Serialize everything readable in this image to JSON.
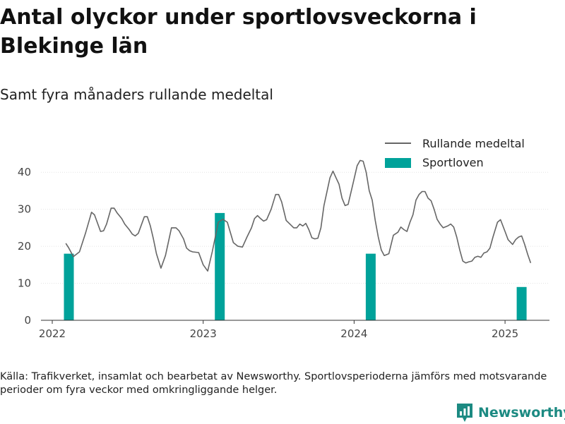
{
  "header": {
    "title": "Antal olyckor under sportlovsveckorna i Blekinge län",
    "subtitle": "Samt fyra månaders rullande medeltal"
  },
  "footer": {
    "source": "Källa: Trafikverket, insamlat och bearbetat av Newsworthy. Sportlovsperioderna jämförs med motsvarande perioder om fyra veckor med omkringliggande helger.",
    "brand": "Newsworthy"
  },
  "colors": {
    "line": "#666666",
    "bar": "#00a29a",
    "brand": "#1c8a82",
    "grid": "#e3e3e3"
  },
  "chart_data": {
    "type": "bar+line",
    "xlim": [
      2021.95,
      2025.3
    ],
    "ylim": [
      0,
      45
    ],
    "y_ticks": [
      0,
      10,
      20,
      30,
      40
    ],
    "x_ticks": [
      2022,
      2023,
      2024,
      2025
    ],
    "x_tick_labels": [
      "2022",
      "2023",
      "2024",
      "2025"
    ],
    "legend_position": "top-right",
    "grid": true,
    "series": [
      {
        "name": "Rullande medeltal",
        "type": "line",
        "color": "#666666",
        "points": [
          [
            2022.09,
            20.8
          ],
          [
            2022.11,
            19.5
          ],
          [
            2022.14,
            17.2
          ],
          [
            2022.18,
            18.5
          ],
          [
            2022.22,
            23.5
          ],
          [
            2022.26,
            29.2
          ],
          [
            2022.28,
            28.5
          ],
          [
            2022.32,
            24
          ],
          [
            2022.34,
            24.2
          ],
          [
            2022.36,
            26
          ],
          [
            2022.39,
            30.3
          ],
          [
            2022.41,
            30.3
          ],
          [
            2022.43,
            29
          ],
          [
            2022.46,
            27.5
          ],
          [
            2022.48,
            26
          ],
          [
            2022.51,
            24.5
          ],
          [
            2022.53,
            23.3
          ],
          [
            2022.55,
            22.8
          ],
          [
            2022.57,
            23.5
          ],
          [
            2022.61,
            28
          ],
          [
            2022.63,
            28
          ],
          [
            2022.65,
            25.5
          ],
          [
            2022.67,
            22
          ],
          [
            2022.69,
            18
          ],
          [
            2022.72,
            14.1
          ],
          [
            2022.75,
            17.5
          ],
          [
            2022.79,
            25
          ],
          [
            2022.82,
            25
          ],
          [
            2022.84,
            24.2
          ],
          [
            2022.87,
            22
          ],
          [
            2022.89,
            19.5
          ],
          [
            2022.91,
            18.8
          ],
          [
            2022.93,
            18.5
          ],
          [
            2022.97,
            18.3
          ],
          [
            2023.0,
            15
          ],
          [
            2023.03,
            13.3
          ],
          [
            2023.06,
            18.5
          ],
          [
            2023.1,
            26.5
          ],
          [
            2023.13,
            27.3
          ],
          [
            2023.16,
            26.5
          ],
          [
            2023.2,
            21
          ],
          [
            2023.23,
            20
          ],
          [
            2023.26,
            19.8
          ],
          [
            2023.29,
            22.5
          ],
          [
            2023.32,
            25
          ],
          [
            2023.34,
            27.5
          ],
          [
            2023.36,
            28.3
          ],
          [
            2023.38,
            27.5
          ],
          [
            2023.4,
            26.8
          ],
          [
            2023.42,
            27.2
          ],
          [
            2023.45,
            30
          ],
          [
            2023.48,
            34
          ],
          [
            2023.5,
            34
          ],
          [
            2023.52,
            32
          ],
          [
            2023.55,
            27
          ],
          [
            2023.58,
            25.8
          ],
          [
            2023.6,
            25
          ],
          [
            2023.62,
            25
          ],
          [
            2023.64,
            26
          ],
          [
            2023.66,
            25.5
          ],
          [
            2023.68,
            26.2
          ],
          [
            2023.7,
            24.5
          ],
          [
            2023.72,
            22.3
          ],
          [
            2023.74,
            22
          ],
          [
            2023.76,
            22.2
          ],
          [
            2023.78,
            25
          ],
          [
            2023.8,
            31
          ],
          [
            2023.84,
            38.5
          ],
          [
            2023.86,
            40.3
          ],
          [
            2023.88,
            38.5
          ],
          [
            2023.9,
            36.8
          ],
          [
            2023.92,
            33
          ],
          [
            2023.94,
            31
          ],
          [
            2023.96,
            31.3
          ],
          [
            2023.99,
            36.5
          ],
          [
            2024.02,
            41.8
          ],
          [
            2024.04,
            43.2
          ],
          [
            2024.06,
            43
          ],
          [
            2024.08,
            40
          ],
          [
            2024.1,
            35
          ],
          [
            2024.12,
            32.5
          ],
          [
            2024.14,
            27
          ],
          [
            2024.16,
            22.5
          ],
          [
            2024.18,
            19
          ],
          [
            2024.2,
            17.5
          ],
          [
            2024.23,
            18
          ],
          [
            2024.26,
            23
          ],
          [
            2024.29,
            23.8
          ],
          [
            2024.31,
            25.2
          ],
          [
            2024.33,
            24.5
          ],
          [
            2024.35,
            24
          ],
          [
            2024.37,
            26.5
          ],
          [
            2024.39,
            28.5
          ],
          [
            2024.41,
            32.5
          ],
          [
            2024.43,
            34
          ],
          [
            2024.45,
            34.8
          ],
          [
            2024.47,
            34.8
          ],
          [
            2024.49,
            33
          ],
          [
            2024.51,
            32.3
          ],
          [
            2024.53,
            30
          ],
          [
            2024.55,
            27.3
          ],
          [
            2024.57,
            26
          ],
          [
            2024.59,
            25
          ],
          [
            2024.62,
            25.5
          ],
          [
            2024.64,
            26
          ],
          [
            2024.66,
            25.2
          ],
          [
            2024.68,
            22.5
          ],
          [
            2024.7,
            19
          ],
          [
            2024.72,
            16
          ],
          [
            2024.74,
            15.5
          ],
          [
            2024.76,
            15.8
          ],
          [
            2024.78,
            16
          ],
          [
            2024.8,
            17
          ],
          [
            2024.82,
            17.3
          ],
          [
            2024.84,
            17
          ],
          [
            2024.86,
            18.2
          ],
          [
            2024.88,
            18.5
          ],
          [
            2024.9,
            19.5
          ],
          [
            2024.92,
            22.5
          ],
          [
            2024.95,
            26.5
          ],
          [
            2024.97,
            27.2
          ],
          [
            2025.0,
            24
          ],
          [
            2025.02,
            21.8
          ],
          [
            2025.05,
            20.5
          ],
          [
            2025.07,
            21.8
          ],
          [
            2025.09,
            22.5
          ],
          [
            2025.11,
            22.8
          ],
          [
            2025.13,
            20.5
          ],
          [
            2025.15,
            17.8
          ],
          [
            2025.17,
            15.5
          ]
        ]
      },
      {
        "name": "Sportloven",
        "type": "bar",
        "color": "#00a29a",
        "x": [
          2022.11,
          2023.11,
          2024.11,
          2025.11
        ],
        "values": [
          18,
          29,
          18,
          9
        ]
      }
    ]
  }
}
